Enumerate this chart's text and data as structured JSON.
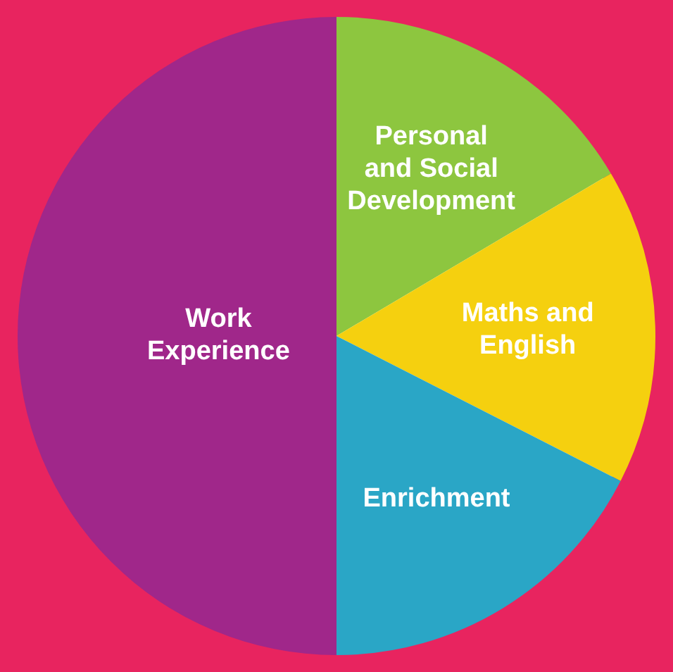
{
  "chart_data": {
    "type": "pie",
    "categories": [
      "Personal and Social Development",
      "Maths and English",
      "Enrichment",
      "Work Experience"
    ],
    "values": [
      16.5,
      16,
      17.5,
      50
    ],
    "colors": [
      "#8dc63f",
      "#f5d00f",
      "#2aa6c6",
      "#a0278a"
    ],
    "legend": false
  }
}
